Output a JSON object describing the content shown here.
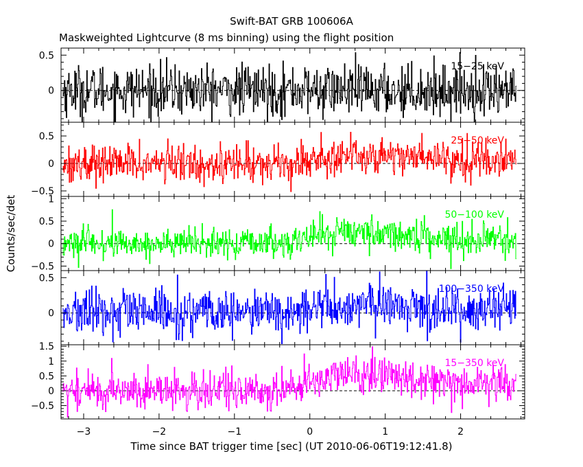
{
  "chart_data": {
    "type": "line",
    "title": "Swift-BAT GRB 100606A",
    "subtitle": "Maskweighted Lightcurve (8 ms binning) using the flight position",
    "xlabel": "Time since BAT trigger time [sec] (UT 2010-06-06T19:12:41.8)",
    "ylabel": "Counts/sec/det",
    "xlim": [
      -3.3,
      2.85
    ],
    "x_ticks": [
      -3,
      -2,
      -1,
      0,
      1,
      2
    ],
    "x_tick_labels": [
      "−3",
      "−2",
      "−1",
      "0",
      "1",
      "2"
    ],
    "data_range": [
      -3.28,
      2.74
    ],
    "bin_width_s": 0.008,
    "grid": false,
    "zero_reference_line": true,
    "panels": [
      {
        "name": "15-25 keV",
        "label": "15−25 keV",
        "color": "#000000",
        "ylim": [
          -0.45,
          0.6
        ],
        "y_ticks": [
          0,
          0.5
        ],
        "y_tick_labels": [
          "0",
          "0.5"
        ],
        "noise_sd": 0.18,
        "envelope": [
          [
            -3.3,
            0.0
          ],
          [
            2.8,
            0.0
          ]
        ]
      },
      {
        "name": "25-50 keV",
        "label": "25−50 keV",
        "color": "#ff0000",
        "ylim": [
          -0.6,
          0.75
        ],
        "y_ticks": [
          -0.5,
          0,
          0.5
        ],
        "y_tick_labels": [
          "−0.5",
          "0",
          "0.5"
        ],
        "noise_sd": 0.17,
        "envelope": [
          [
            -3.3,
            0.0
          ],
          [
            -0.3,
            0.0
          ],
          [
            0.0,
            0.08
          ],
          [
            0.5,
            0.15
          ],
          [
            1.0,
            0.15
          ],
          [
            1.5,
            0.13
          ],
          [
            2.0,
            0.08
          ],
          [
            2.8,
            0.05
          ]
        ]
      },
      {
        "name": "50-100 keV",
        "label": "50−100 keV",
        "color": "#00ff00",
        "ylim": [
          -0.6,
          1.05
        ],
        "y_ticks": [
          -0.5,
          0,
          0.5,
          1
        ],
        "y_tick_labels": [
          "−0.5",
          "0",
          "0.5",
          "1"
        ],
        "noise_sd": 0.17,
        "envelope": [
          [
            -3.3,
            0.0
          ],
          [
            -0.3,
            0.0
          ],
          [
            0.0,
            0.18
          ],
          [
            0.5,
            0.28
          ],
          [
            1.0,
            0.22
          ],
          [
            1.5,
            0.16
          ],
          [
            2.0,
            0.1
          ],
          [
            2.8,
            0.08
          ]
        ]
      },
      {
        "name": "100-350 keV",
        "label": "100−350 keV",
        "color": "#0000ff",
        "ylim": [
          -0.45,
          0.6
        ],
        "y_ticks": [
          0,
          0.5
        ],
        "y_tick_labels": [
          "0",
          "0.5"
        ],
        "noise_sd": 0.16,
        "envelope": [
          [
            -3.3,
            0.0
          ],
          [
            -0.3,
            0.0
          ],
          [
            0.0,
            0.06
          ],
          [
            0.5,
            0.1
          ],
          [
            1.0,
            0.1
          ],
          [
            1.5,
            0.08
          ],
          [
            2.0,
            0.05
          ],
          [
            2.8,
            0.04
          ]
        ]
      },
      {
        "name": "15-350 keV",
        "label": "15−350 keV",
        "color": "#ff00ff",
        "ylim": [
          -0.95,
          1.55
        ],
        "y_ticks": [
          -0.5,
          0,
          0.5,
          1,
          1.5
        ],
        "y_tick_labels": [
          "−0.5",
          "0",
          "0.5",
          "1",
          "1.5"
        ],
        "noise_sd": 0.32,
        "envelope": [
          [
            -3.3,
            0.0
          ],
          [
            -0.3,
            0.0
          ],
          [
            0.0,
            0.35
          ],
          [
            0.5,
            0.55
          ],
          [
            1.0,
            0.5
          ],
          [
            1.5,
            0.42
          ],
          [
            2.0,
            0.3
          ],
          [
            2.8,
            0.25
          ]
        ]
      }
    ]
  }
}
